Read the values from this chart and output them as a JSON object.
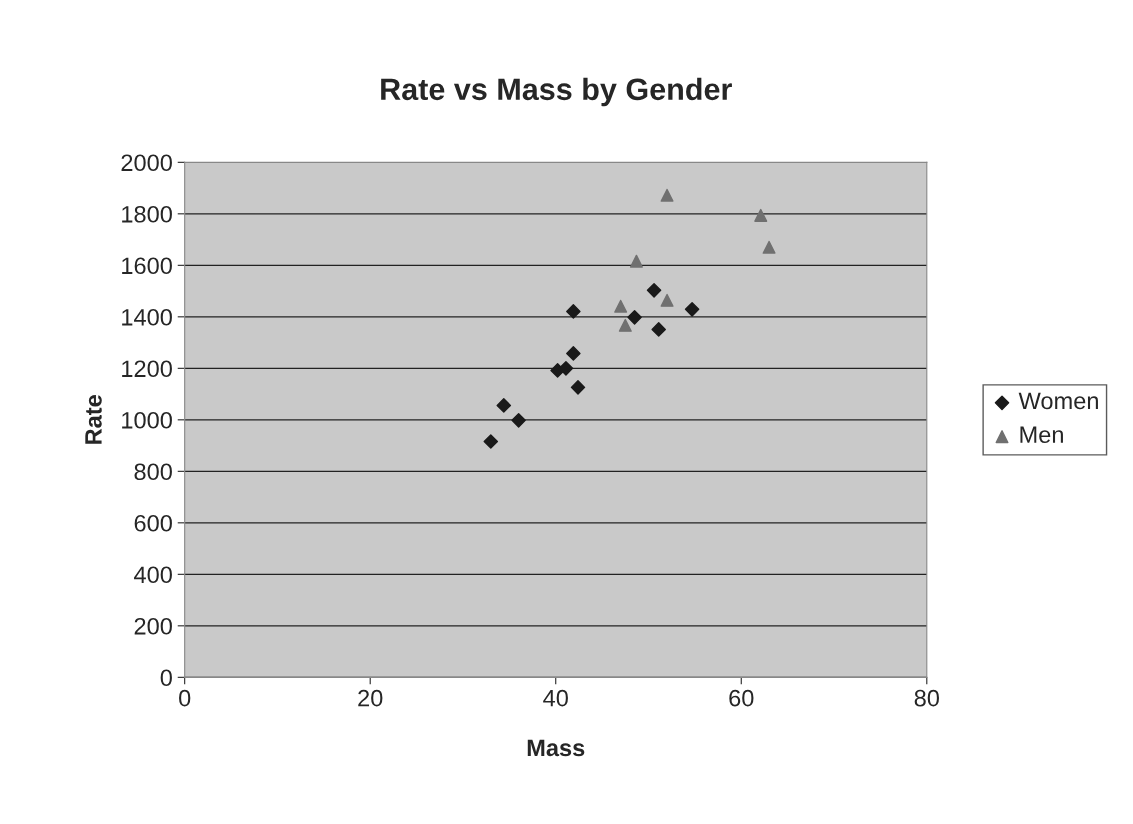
{
  "chart_data": {
    "type": "scatter",
    "title": "Rate vs Mass by Gender",
    "xlabel": "Mass",
    "ylabel": "Rate",
    "xlim": [
      0,
      80
    ],
    "xticks": [
      0,
      20,
      40,
      60,
      80
    ],
    "ylim": [
      0,
      2000
    ],
    "yticks": [
      0,
      200,
      400,
      600,
      800,
      1000,
      1200,
      1400,
      1600,
      1800,
      2000
    ],
    "grid": "y",
    "legend": "right",
    "series": [
      {
        "name": "Women",
        "color": "#1a1a1a",
        "marker": "diamond",
        "x": [
          33.0,
          34.4,
          36.0,
          40.2,
          41.1,
          41.9,
          41.9,
          42.4,
          48.5,
          50.6,
          51.1,
          54.7
        ],
        "values": [
          916,
          1056,
          998,
          1192,
          1200,
          1258,
          1421,
          1126,
          1398,
          1503,
          1351,
          1429
        ]
      },
      {
        "name": "Men",
        "color": "#707070",
        "marker": "triangle",
        "x": [
          47.0,
          47.5,
          48.7,
          52.0,
          52.0,
          62.1,
          63.0
        ],
        "values": [
          1441,
          1367,
          1616,
          1872,
          1464,
          1794,
          1670
        ]
      }
    ]
  }
}
